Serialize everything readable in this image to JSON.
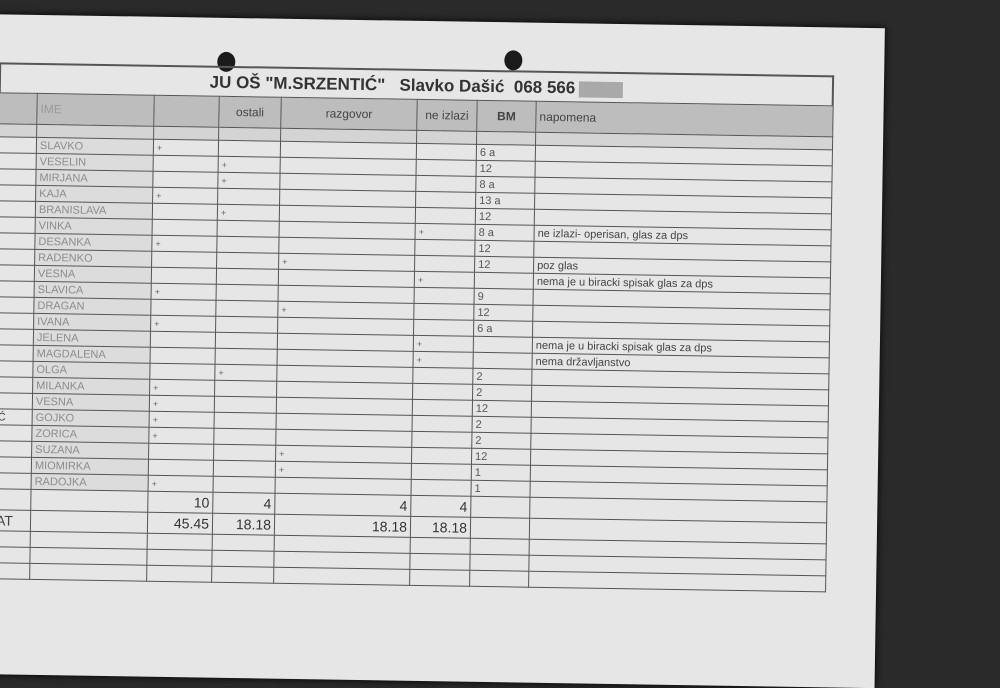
{
  "title": {
    "school": "JU OŠ \"M.SRZENTIĆ\"",
    "person": "Slavko Dašić",
    "phone": "068 566"
  },
  "headers": [
    "",
    "IME",
    "",
    "ostali",
    "razgovor",
    "ne izlazi",
    "BM",
    "napomena"
  ],
  "rows": [
    {
      "stub": "",
      "name": "SLAVKO",
      "a": "+",
      "ostali": "",
      "razgovor": "",
      "ne_izlazi": "",
      "bm": "6 a",
      "napomena": ""
    },
    {
      "stub": "",
      "name": "VESELIN",
      "a": "",
      "ostali": "+",
      "razgovor": "",
      "ne_izlazi": "",
      "bm": "12",
      "napomena": ""
    },
    {
      "stub": "",
      "name": "MIRJANA",
      "a": "",
      "ostali": "+",
      "razgovor": "",
      "ne_izlazi": "",
      "bm": "8 a",
      "napomena": ""
    },
    {
      "stub": "",
      "name": "KAJA",
      "a": "+",
      "ostali": "",
      "razgovor": "",
      "ne_izlazi": "",
      "bm": "13 a",
      "napomena": ""
    },
    {
      "stub": "",
      "name": "BRANISLAVA",
      "a": "",
      "ostali": "+",
      "razgovor": "",
      "ne_izlazi": "",
      "bm": "12",
      "napomena": ""
    },
    {
      "stub": "",
      "name": "VINKA",
      "a": "",
      "ostali": "",
      "razgovor": "",
      "ne_izlazi": "+",
      "bm": "8 a",
      "napomena": "ne izlazi- operisan, glas za dps"
    },
    {
      "stub": "",
      "name": "DESANKA",
      "a": "+",
      "ostali": "",
      "razgovor": "",
      "ne_izlazi": "",
      "bm": "12",
      "napomena": ""
    },
    {
      "stub": "",
      "name": "RADENKO",
      "a": "",
      "ostali": "",
      "razgovor": "+",
      "ne_izlazi": "",
      "bm": "12",
      "napomena": "poz glas"
    },
    {
      "stub": "",
      "name": "VESNA",
      "a": "",
      "ostali": "",
      "razgovor": "",
      "ne_izlazi": "+",
      "bm": "",
      "napomena": "nema je u biracki spisak  glas za dps"
    },
    {
      "stub": "",
      "name": "SLAVICA",
      "a": "+",
      "ostali": "",
      "razgovor": "",
      "ne_izlazi": "",
      "bm": "9",
      "napomena": ""
    },
    {
      "stub": "",
      "name": "DRAGAN",
      "a": "",
      "ostali": "",
      "razgovor": "+",
      "ne_izlazi": "",
      "bm": "12",
      "napomena": ""
    },
    {
      "stub": "",
      "name": "IVANA",
      "a": "+",
      "ostali": "",
      "razgovor": "",
      "ne_izlazi": "",
      "bm": "6  a",
      "napomena": ""
    },
    {
      "stub": "",
      "name": "JELENA",
      "a": "",
      "ostali": "",
      "razgovor": "",
      "ne_izlazi": "+",
      "bm": "",
      "napomena": "nema je u biracki spisak  glas za dps"
    },
    {
      "stub": "",
      "name": "MAGDALENA",
      "a": "",
      "ostali": "",
      "razgovor": "",
      "ne_izlazi": "+",
      "bm": "",
      "napomena": "nema državljanstvo"
    },
    {
      "stub": "",
      "name": "OLGA",
      "a": "",
      "ostali": "+",
      "razgovor": "",
      "ne_izlazi": "",
      "bm": "2",
      "napomena": ""
    },
    {
      "stub": "",
      "name": "MILANKA",
      "a": "+",
      "ostali": "",
      "razgovor": "",
      "ne_izlazi": "",
      "bm": "2",
      "napomena": ""
    },
    {
      "stub": "",
      "name": "VESNA",
      "a": "+",
      "ostali": "",
      "razgovor": "",
      "ne_izlazi": "",
      "bm": "12",
      "napomena": ""
    },
    {
      "stub": "Ć",
      "name": "GOJKO",
      "a": "+",
      "ostali": "",
      "razgovor": "",
      "ne_izlazi": "",
      "bm": "2",
      "napomena": ""
    },
    {
      "stub": "",
      "name": "ZORICA",
      "a": "+",
      "ostali": "",
      "razgovor": "",
      "ne_izlazi": "",
      "bm": "2",
      "napomena": ""
    },
    {
      "stub": "",
      "name": "SUZANA",
      "a": "",
      "ostali": "",
      "razgovor": "+",
      "ne_izlazi": "",
      "bm": "12",
      "napomena": ""
    },
    {
      "stub": "",
      "name": "MIOMIRKA",
      "a": "",
      "ostali": "",
      "razgovor": "+",
      "ne_izlazi": "",
      "bm": "1",
      "napomena": ""
    },
    {
      "stub": "",
      "name": "RADOJKA",
      "a": "+",
      "ostali": "",
      "razgovor": "",
      "ne_izlazi": "",
      "bm": "1",
      "napomena": ""
    }
  ],
  "totals": {
    "stub": "",
    "a": "10",
    "ostali": "4",
    "razgovor": "4",
    "ne_izlazi": "4"
  },
  "percent": {
    "stub": "AT",
    "a": "45.45",
    "ostali": "18.18",
    "razgovor": "18.18",
    "ne_izlazi": "18.18"
  }
}
